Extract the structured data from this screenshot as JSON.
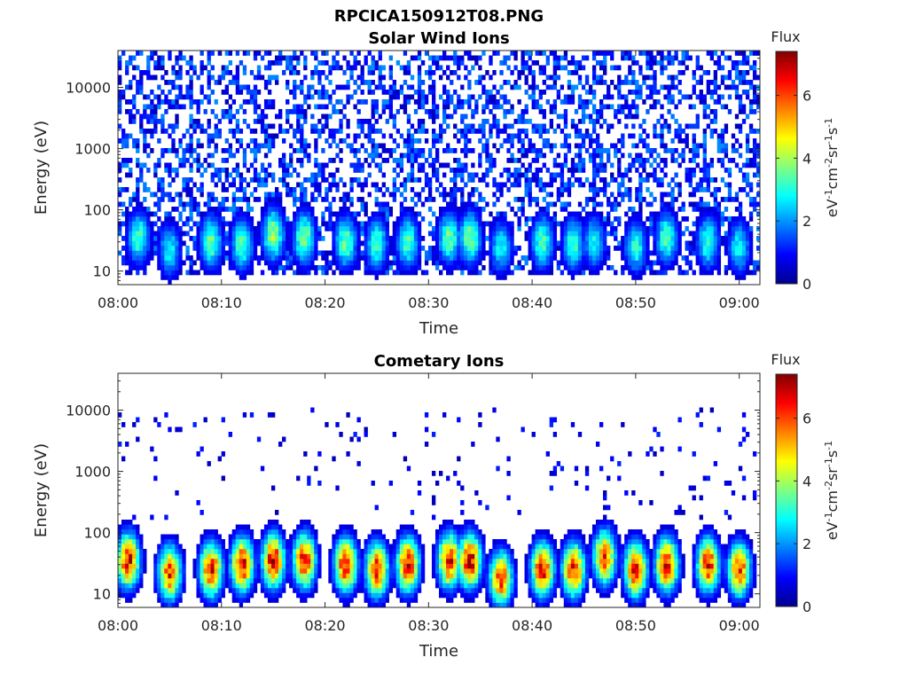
{
  "figure": {
    "title": "RPCICA150912T08.PNG"
  },
  "colormap": {
    "stops": [
      "#00008f",
      "#0000ff",
      "#0080ff",
      "#00ffff",
      "#80ff80",
      "#ffff00",
      "#ff8000",
      "#ff0000",
      "#800000"
    ]
  },
  "chart_data": [
    {
      "type": "heatmap",
      "title": "Solar Wind Ions",
      "xlabel": "Time",
      "ylabel": "Energy (eV)",
      "x_range": [
        "08:00",
        "09:02"
      ],
      "x_ticks": [
        "08:00",
        "08:10",
        "08:20",
        "08:30",
        "08:40",
        "08:50",
        "09:00"
      ],
      "y_scale": "log",
      "y_range": [
        6,
        40000
      ],
      "y_ticks": [
        10,
        100,
        1000,
        10000
      ],
      "y_tick_labels": [
        "10",
        "100",
        "1000",
        "10000"
      ],
      "colorbar": {
        "title": "Flux",
        "label_parts": [
          "eV",
          "-1",
          "cm",
          "-2",
          "sr",
          "-1",
          "s",
          "-1"
        ],
        "range": [
          0,
          7.4
        ],
        "ticks": [
          0,
          2,
          4,
          6
        ],
        "tick_labels": [
          "0",
          "2",
          "4",
          "6"
        ]
      },
      "bursts": [
        {
          "t": "08:02",
          "peak_ev": 35,
          "peak_flux": 3.5
        },
        {
          "t": "08:05",
          "peak_ev": 22,
          "peak_flux": 3.0
        },
        {
          "t": "08:09",
          "peak_ev": 30,
          "peak_flux": 3.8
        },
        {
          "t": "08:12",
          "peak_ev": 28,
          "peak_flux": 3.6
        },
        {
          "t": "08:15",
          "peak_ev": 40,
          "peak_flux": 4.2
        },
        {
          "t": "08:18",
          "peak_ev": 35,
          "peak_flux": 4.0
        },
        {
          "t": "08:22",
          "peak_ev": 30,
          "peak_flux": 3.8
        },
        {
          "t": "08:25",
          "peak_ev": 28,
          "peak_flux": 3.5
        },
        {
          "t": "08:28",
          "peak_ev": 30,
          "peak_flux": 3.6
        },
        {
          "t": "08:32",
          "peak_ev": 35,
          "peak_flux": 3.8
        },
        {
          "t": "08:34",
          "peak_ev": 35,
          "peak_flux": 4.0
        },
        {
          "t": "08:37",
          "peak_ev": 25,
          "peak_flux": 3.0
        },
        {
          "t": "08:41",
          "peak_ev": 30,
          "peak_flux": 3.6
        },
        {
          "t": "08:44",
          "peak_ev": 28,
          "peak_flux": 3.4
        },
        {
          "t": "08:46",
          "peak_ev": 30,
          "peak_flux": 3.0
        },
        {
          "t": "08:50",
          "peak_ev": 25,
          "peak_flux": 3.2
        },
        {
          "t": "08:53",
          "peak_ev": 35,
          "peak_flux": 3.6
        },
        {
          "t": "08:57",
          "peak_ev": 30,
          "peak_flux": 3.4
        },
        {
          "t": "09:00",
          "peak_ev": 25,
          "peak_flux": 3.0
        }
      ],
      "background": {
        "energy_range_ev": [
          8,
          40000
        ],
        "flux_range": [
          0.3,
          2.0
        ],
        "fill_fraction": 0.45
      }
    },
    {
      "type": "heatmap",
      "title": "Cometary Ions",
      "xlabel": "Time",
      "ylabel": "Energy (eV)",
      "x_range": [
        "08:00",
        "09:02"
      ],
      "x_ticks": [
        "08:00",
        "08:10",
        "08:20",
        "08:30",
        "08:40",
        "08:50",
        "09:00"
      ],
      "y_scale": "log",
      "y_range": [
        6,
        40000
      ],
      "y_ticks": [
        10,
        100,
        1000,
        10000
      ],
      "y_tick_labels": [
        "10",
        "100",
        "1000",
        "10000"
      ],
      "colorbar": {
        "title": "Flux",
        "label_parts": [
          "eV",
          "-1",
          "cm",
          "-2",
          "sr",
          "-1",
          "s",
          "-1"
        ],
        "range": [
          0,
          7.4
        ],
        "ticks": [
          0,
          2,
          4,
          6
        ],
        "tick_labels": [
          "0",
          "2",
          "4",
          "6"
        ]
      },
      "bursts": [
        {
          "t": "08:01",
          "peak_ev": 35,
          "peak_flux": 7.0
        },
        {
          "t": "08:05",
          "peak_ev": 22,
          "peak_flux": 6.5
        },
        {
          "t": "08:09",
          "peak_ev": 25,
          "peak_flux": 6.8
        },
        {
          "t": "08:12",
          "peak_ev": 30,
          "peak_flux": 7.0
        },
        {
          "t": "08:15",
          "peak_ev": 35,
          "peak_flux": 7.2
        },
        {
          "t": "08:18",
          "peak_ev": 35,
          "peak_flux": 6.8
        },
        {
          "t": "08:22",
          "peak_ev": 30,
          "peak_flux": 7.0
        },
        {
          "t": "08:25",
          "peak_ev": 25,
          "peak_flux": 6.8
        },
        {
          "t": "08:28",
          "peak_ev": 30,
          "peak_flux": 7.0
        },
        {
          "t": "08:32",
          "peak_ev": 35,
          "peak_flux": 7.0
        },
        {
          "t": "08:34",
          "peak_ev": 35,
          "peak_flux": 7.2
        },
        {
          "t": "08:37",
          "peak_ev": 18,
          "peak_flux": 6.5
        },
        {
          "t": "08:41",
          "peak_ev": 25,
          "peak_flux": 7.0
        },
        {
          "t": "08:44",
          "peak_ev": 25,
          "peak_flux": 6.8
        },
        {
          "t": "08:47",
          "peak_ev": 40,
          "peak_flux": 6.5
        },
        {
          "t": "08:50",
          "peak_ev": 25,
          "peak_flux": 7.0
        },
        {
          "t": "08:53",
          "peak_ev": 30,
          "peak_flux": 7.0
        },
        {
          "t": "08:57",
          "peak_ev": 30,
          "peak_flux": 6.8
        },
        {
          "t": "09:00",
          "peak_ev": 25,
          "peak_flux": 6.5
        }
      ],
      "background": {
        "energy_range_ev": [
          150,
          12000
        ],
        "flux_range": [
          0.3,
          1.2
        ],
        "fill_fraction": 0.04
      }
    }
  ]
}
